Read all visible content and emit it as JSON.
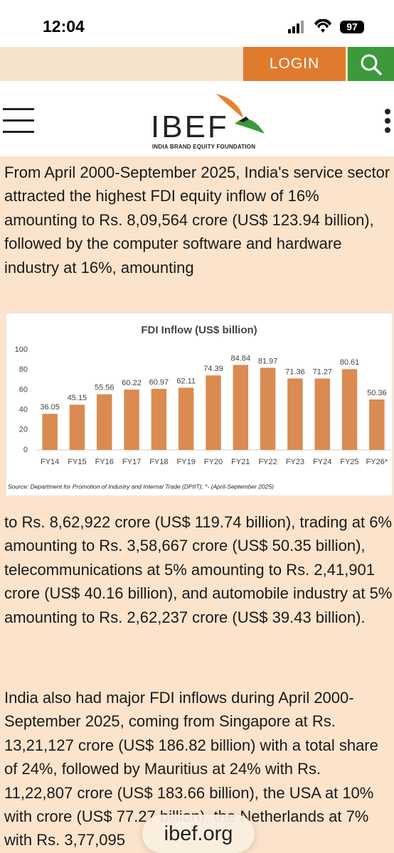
{
  "status_bar": {
    "time": "12:04",
    "battery": "97"
  },
  "header": {
    "login": "LOGIN",
    "brand": "IBEF",
    "brand_subtitle": "INDIA BRAND EQUITY FOUNDATION"
  },
  "paragraphs": [
    "From April 2000-September 2025, India's service sector attracted the highest FDI equity inflow of 16% amounting to Rs. 8,09,564 crore (US$ 123.94 billion), followed by the computer software and hardware industry at 16%, amounting",
    "to Rs. 8,62,922 crore (US$ 119.74 billion), trading at 6% amounting to Rs. 3,58,667 crore (US$ 50.35 billion), telecommunications at 5% amounting to Rs. 2,41,901 crore (US$ 40.16 billion), and automobile industry at 5% amounting to Rs. 2,62,237 crore (US$ 39.43 billion).",
    "India also had major FDI inflows during April 2000-September 2025, coming from Singapore at Rs. 13,21,127 crore (US$ 186.82 billion) with a total share of 24%, followed by Mauritius at 24% with Rs. 11,22,807 crore (US$ 183.66 billion), the USA at 10% with crore (US$ 77.27 billion), the Netherlands at 7% with Rs. 3,77,095"
  ],
  "chart_data": {
    "type": "bar",
    "title": "FDI Inflow (US$ billion)",
    "categories": [
      "FY14",
      "FY15",
      "FY16",
      "FY17",
      "FY18",
      "FY19",
      "FY20",
      "FY21",
      "FY22",
      "FY23",
      "FY24",
      "FY25",
      "FY26*"
    ],
    "values": [
      36.05,
      45.15,
      55.56,
      60.22,
      60.97,
      62.11,
      74.39,
      84.84,
      81.97,
      71.36,
      71.27,
      80.61,
      50.36
    ],
    "color": "#d98b52",
    "ylim": [
      0,
      100
    ],
    "yticks": [
      0,
      20,
      40,
      60,
      80,
      100
    ],
    "grid": false,
    "source": "Source: Department for Promotion of Industry and Internal Trade (DPIIT), *- (April-September 2025)"
  },
  "footer": {
    "site": "ibef.org"
  }
}
